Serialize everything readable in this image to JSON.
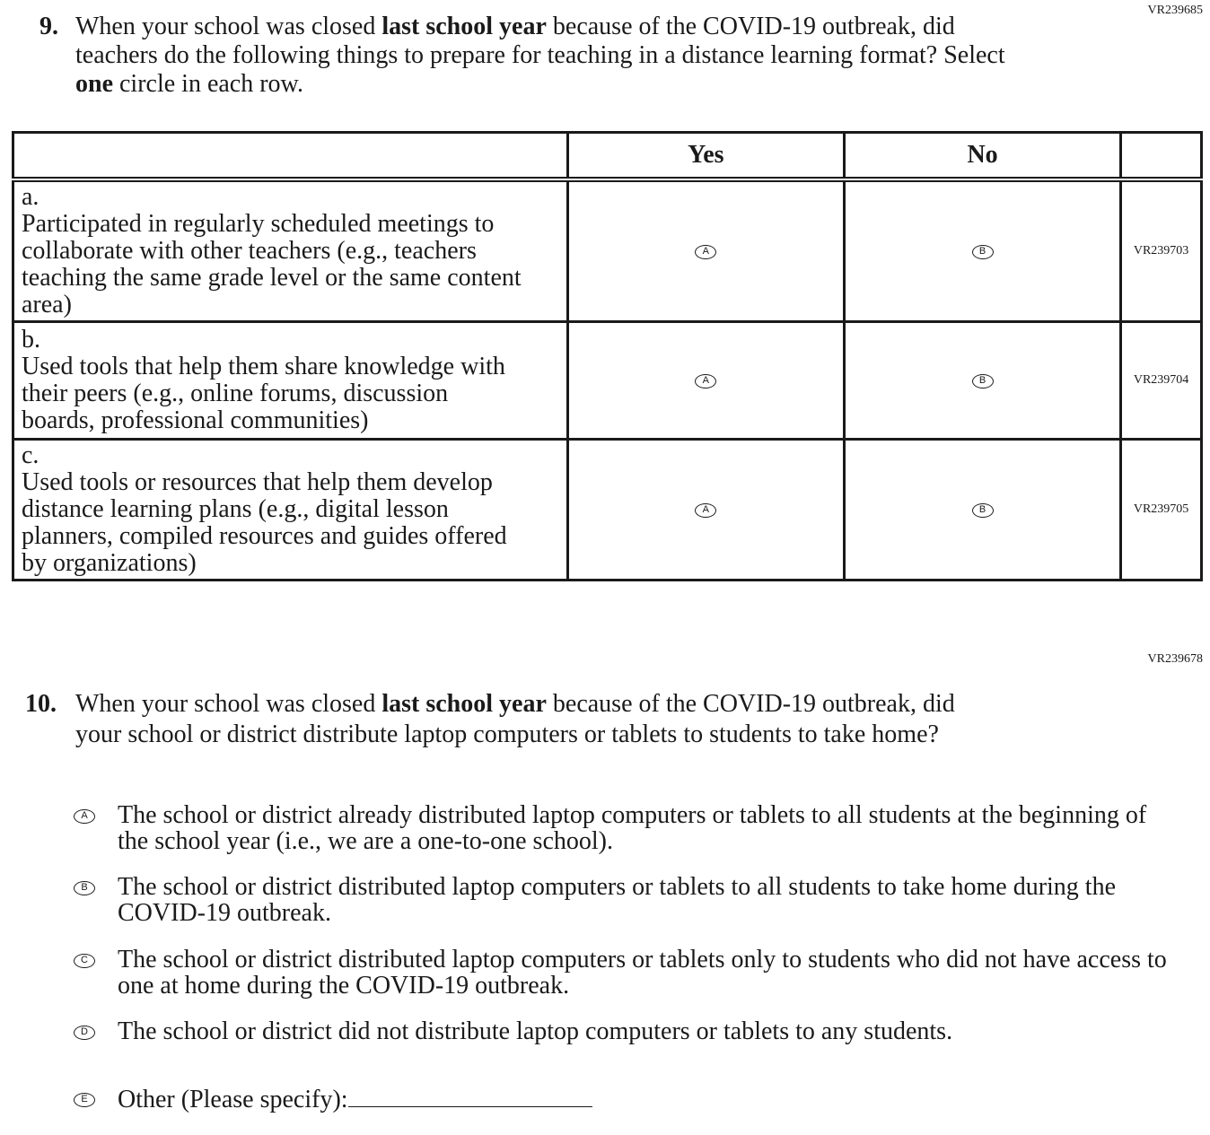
{
  "q9": {
    "code": "VR239685",
    "number": "9.",
    "text_pre": "When your school was closed ",
    "text_bold": "last school year",
    "text_mid": " because of the COVID-19 outbreak, did teachers do the following things to prepare for teaching in a distance learning format? Select ",
    "text_bold2": "one",
    "text_post": " circle in each row.",
    "columns": [
      "Yes",
      "No"
    ],
    "rows": [
      {
        "label": "a.",
        "text": "Participated in regularly scheduled meetings to collaborate with other teachers (e.g., teachers teaching the same grade level or the same content area)",
        "yes": "A",
        "no": "B",
        "code": "VR239703"
      },
      {
        "label": "b.",
        "text": "Used tools that help them share knowledge with their peers (e.g., online forums, discussion boards, professional communities)",
        "yes": "A",
        "no": "B",
        "code": "VR239704"
      },
      {
        "label": "c.",
        "text": "Used tools or resources that help them develop distance learning plans (e.g., digital lesson planners, compiled resources and guides offered by organizations)",
        "yes": "A",
        "no": "B",
        "code": "VR239705"
      }
    ]
  },
  "q10": {
    "code": "VR239678",
    "number": "10.",
    "text_pre": "When your school was closed ",
    "text_bold": "last school year",
    "text_post": " because of the COVID-19 outbreak, did your school or district distribute laptop computers or tablets to students to take home?",
    "options": [
      {
        "letter": "A",
        "text": "The school or district already distributed laptop computers or tablets to all students at the beginning of the school year (i.e., we are a one-to-one school)."
      },
      {
        "letter": "B",
        "text": "The school or district distributed laptop computers or tablets to all students to take home during the COVID-19 outbreak."
      },
      {
        "letter": "C",
        "text": "The school or district distributed laptop computers or tablets only to students who did not have access to one at home during the COVID-19 outbreak."
      },
      {
        "letter": "D",
        "text": "The school or district did not distribute laptop computers or tablets to any students."
      },
      {
        "letter": "E",
        "text": "Other (Please specify):"
      }
    ]
  }
}
